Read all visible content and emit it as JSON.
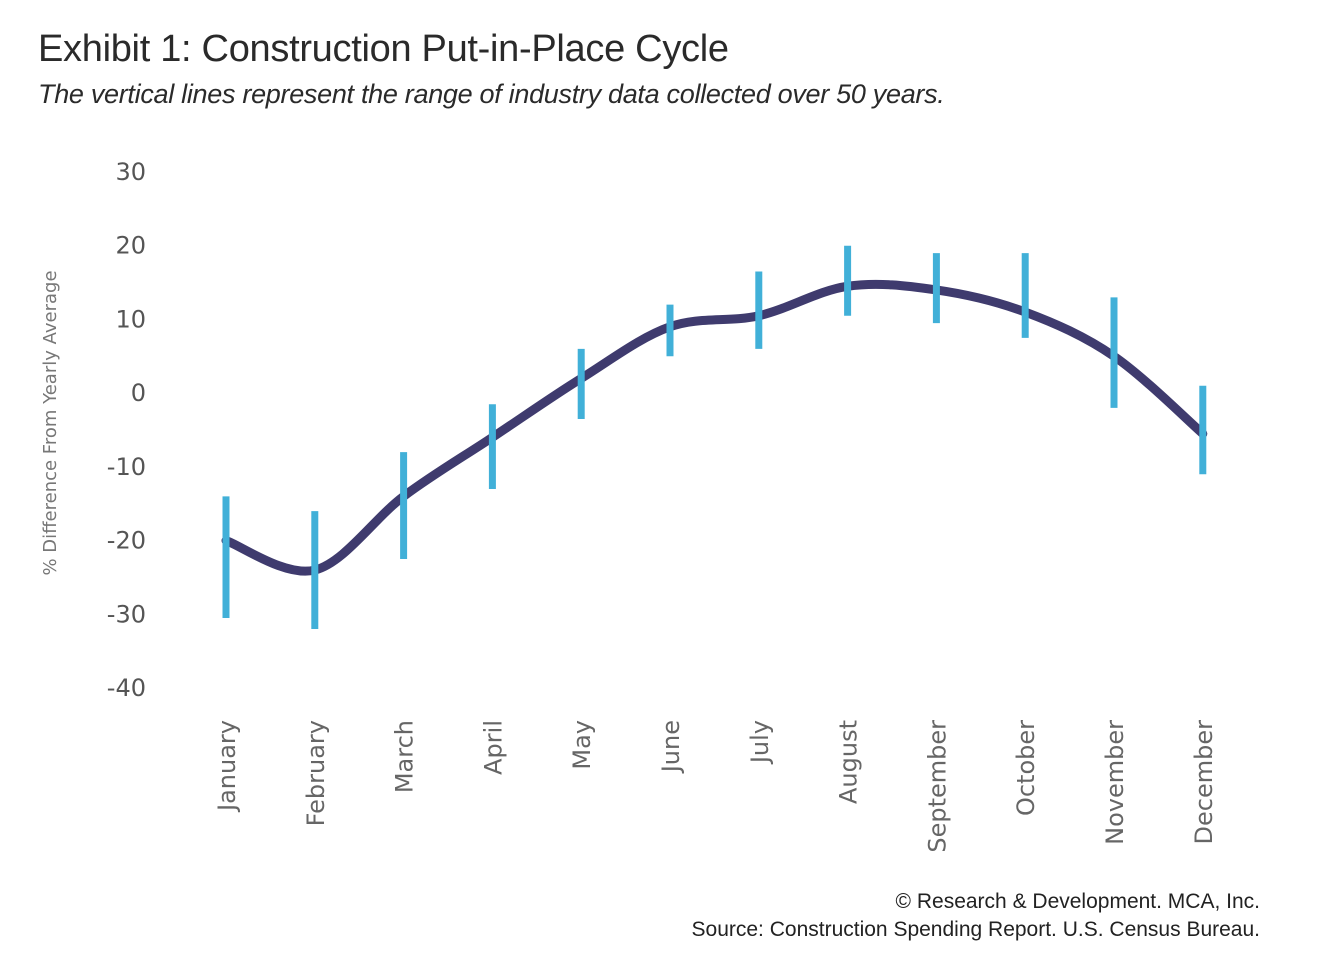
{
  "chart_data": {
    "type": "line",
    "title": "Exhibit 1: Construction Put-in-Place Cycle",
    "subtitle": "The vertical lines represent the range of industry data collected over 50 years.",
    "ylabel": "% Difference From Yearly Average",
    "xlabel": "",
    "ylim": [
      -40,
      30
    ],
    "yticks": [
      30,
      20,
      10,
      0,
      -10,
      -20,
      -30,
      -40
    ],
    "categories": [
      "January",
      "February",
      "March",
      "April",
      "May",
      "June",
      "July",
      "August",
      "September",
      "October",
      "November",
      "December"
    ],
    "series": [
      {
        "values": [
          -20,
          -24,
          -14,
          -6,
          2,
          9,
          10.5,
          14.5,
          14,
          11,
          5,
          -5.5
        ],
        "range_low": [
          -30.5,
          -32,
          -22.5,
          -13,
          -3.5,
          5,
          6,
          10.5,
          9.5,
          7.5,
          -2,
          -11
        ],
        "range_high": [
          -14,
          -16,
          -8,
          -1.5,
          6,
          12,
          16.5,
          20,
          19,
          19,
          13,
          1
        ],
        "color": "#3f3b6e",
        "range_color": "#41b0d8"
      }
    ],
    "grid": false,
    "legend": "none"
  },
  "footer": {
    "credit": "© Research & Development. MCA, Inc.",
    "source": "Source: Construction Spending Report. U.S. Census Bureau."
  }
}
